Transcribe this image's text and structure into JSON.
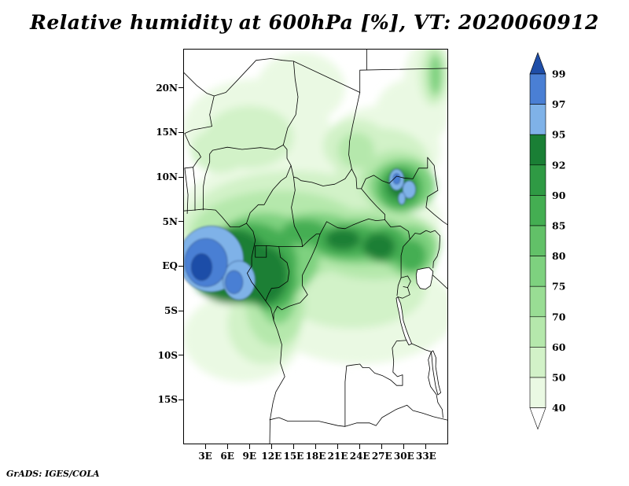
{
  "title": "Relative humidity at 600hPa [%], VT: 2020060912",
  "attribution": "GrADS: IGES/COLA",
  "chart_data": {
    "type": "heatmap",
    "title": "Relative humidity at 600hPa [%], VT: 2020060912",
    "variable": "Relative humidity",
    "level": "600hPa",
    "units": "%",
    "valid_time": "2020060912",
    "lat_ticks": [
      "20N",
      "15N",
      "10N",
      "5N",
      "EQ",
      "5S",
      "10S",
      "15S"
    ],
    "lon_ticks": [
      "3E",
      "6E",
      "9E",
      "12E",
      "15E",
      "18E",
      "21E",
      "24E",
      "27E",
      "30E",
      "33E"
    ],
    "lat_range_approx": "about 24N (top) to 20S (bottom)",
    "lon_range_approx": "about 0E (left) to 36E (right)",
    "region": "West and Central Africa with national boundaries and lakes",
    "legend_position": "right vertical colorbar with arrow ends",
    "colorbar_levels": [
      40,
      50,
      60,
      70,
      75,
      80,
      85,
      90,
      92,
      95,
      97,
      99
    ],
    "colorbar_labels_top_to_bottom": [
      "99",
      "97",
      "95",
      "92",
      "90",
      "85",
      "80",
      "75",
      "70",
      "60",
      "50",
      "40"
    ],
    "colorbar_colors_low_to_high": [
      "#ffffff",
      "#eaf9e3",
      "#d2f2c8",
      "#b5e8ac",
      "#99dd94",
      "#7ed17f",
      "#62c168",
      "#44ae52",
      "#2f9a44",
      "#1a7f35",
      "#7fb2e8",
      "#4a7fd4",
      "#1f4ea8"
    ],
    "features": [
      {
        "region": "Gulf of Guinea / Gabon coast near the Equator (about 1E-9E, 4N-3S)",
        "relative_humidity": "95 to above 99 (blue maximum)"
      },
      {
        "region": "Congo basin band (8E-33E, 5S-5N)",
        "relative_humidity": "80-95 (dark greens)"
      },
      {
        "region": "South Sudan area (28E-31E, 7N-10N)",
        "relative_humidity": "90-97 with small patches above 95 (blue specks)"
      },
      {
        "region": "Sahel and Sahara north of 12N",
        "relative_humidity": "40-75, patchy light green"
      },
      {
        "region": "Southern subtropics south of 8S",
        "relative_humidity": "mostly below 40-60 (white to pale green)"
      }
    ]
  }
}
